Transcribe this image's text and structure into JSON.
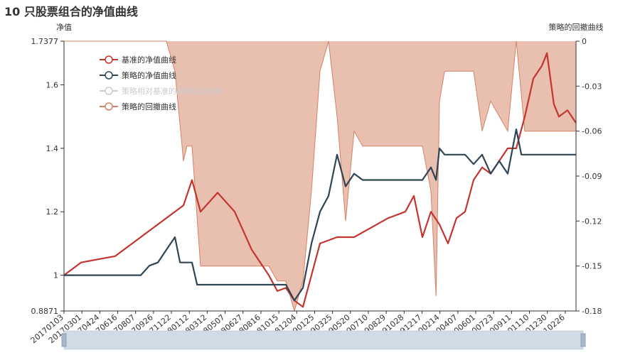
{
  "chart_data": {
    "type": "line",
    "title": "10 只股票组合的净值曲线",
    "y_left": {
      "label": "净值",
      "min": 0.8871,
      "max": 1.7377,
      "ticks": [
        "0.8871",
        "1",
        "1.2",
        "1.4",
        "1.6",
        "1.7377"
      ]
    },
    "y_right": {
      "label": "策略的回撤曲线",
      "min": -0.18,
      "max": 0,
      "ticks": [
        "-0.18",
        "-0.15",
        "-0.12",
        "-0.09",
        "-0.06",
        "-0.03",
        "0"
      ]
    },
    "x_labels": [
      "20170103",
      "20170301",
      "20170424",
      "20170616",
      "20170807",
      "20170926",
      "20171122",
      "20180112",
      "20180312",
      "20180507",
      "20180627",
      "20180816",
      "20181015",
      "20181204",
      "20190125",
      "20190325",
      "20190520",
      "20190710",
      "20190829",
      "20191028",
      "20191217",
      "20200214",
      "20200407",
      "20200601",
      "20200723",
      "20200911",
      "20201110",
      "20201230",
      "20210226"
    ],
    "legend": [
      "基准的净值曲线",
      "策略的净值曲线",
      "策略相对基准的超额收益曲线",
      "策略的回撤曲线"
    ],
    "legend_placement": "top-left",
    "colors": {
      "benchmark": "#c23531",
      "strategy": "#2f4554",
      "excess": "#cccccc",
      "drawdown_line": "#d48265",
      "drawdown_fill": "#e9bfb0"
    },
    "series": [
      {
        "name": "基准的净值曲线",
        "axis": "left",
        "points": [
          [
            0,
            1.0
          ],
          [
            1,
            1.04
          ],
          [
            2,
            1.05
          ],
          [
            3,
            1.06
          ],
          [
            4,
            1.1
          ],
          [
            5,
            1.14
          ],
          [
            6,
            1.18
          ],
          [
            7,
            1.22
          ],
          [
            7.5,
            1.3
          ],
          [
            8,
            1.2
          ],
          [
            9,
            1.26
          ],
          [
            10,
            1.2
          ],
          [
            11,
            1.08
          ],
          [
            12,
            1.0
          ],
          [
            12.5,
            0.95
          ],
          [
            13,
            0.96
          ],
          [
            13.5,
            0.92
          ],
          [
            14,
            0.9
          ],
          [
            14.5,
            1.0
          ],
          [
            15,
            1.1
          ],
          [
            16,
            1.12
          ],
          [
            17,
            1.12
          ],
          [
            18,
            1.15
          ],
          [
            19,
            1.18
          ],
          [
            20,
            1.2
          ],
          [
            20.5,
            1.25
          ],
          [
            21,
            1.12
          ],
          [
            21.5,
            1.2
          ],
          [
            22,
            1.16
          ],
          [
            22.5,
            1.1
          ],
          [
            23,
            1.18
          ],
          [
            23.5,
            1.2
          ],
          [
            24,
            1.3
          ],
          [
            24.5,
            1.34
          ],
          [
            25,
            1.32
          ],
          [
            25.5,
            1.36
          ],
          [
            26,
            1.4
          ],
          [
            26.5,
            1.4
          ],
          [
            27,
            1.5
          ],
          [
            27.5,
            1.62
          ],
          [
            28,
            1.66
          ],
          [
            28.3,
            1.7
          ],
          [
            28.7,
            1.54
          ],
          [
            29,
            1.5
          ],
          [
            29.5,
            1.52
          ],
          [
            30,
            1.48
          ]
        ]
      },
      {
        "name": "策略的净值曲线",
        "axis": "left",
        "points": [
          [
            0,
            1.0
          ],
          [
            4.5,
            1.0
          ],
          [
            5,
            1.03
          ],
          [
            5.5,
            1.04
          ],
          [
            6,
            1.08
          ],
          [
            6.5,
            1.12
          ],
          [
            6.8,
            1.04
          ],
          [
            7.5,
            1.04
          ],
          [
            7.8,
            0.97
          ],
          [
            13,
            0.97
          ],
          [
            13.5,
            0.92
          ],
          [
            14,
            0.96
          ],
          [
            14.5,
            1.1
          ],
          [
            15,
            1.2
          ],
          [
            15.5,
            1.25
          ],
          [
            16,
            1.38
          ],
          [
            16.5,
            1.28
          ],
          [
            17,
            1.32
          ],
          [
            17.5,
            1.3
          ],
          [
            21,
            1.3
          ],
          [
            21.5,
            1.34
          ],
          [
            21.8,
            1.3
          ],
          [
            22,
            1.4
          ],
          [
            22.3,
            1.38
          ],
          [
            23.5,
            1.38
          ],
          [
            24,
            1.35
          ],
          [
            24.5,
            1.38
          ],
          [
            25,
            1.32
          ],
          [
            25.5,
            1.36
          ],
          [
            26,
            1.32
          ],
          [
            26.5,
            1.46
          ],
          [
            26.8,
            1.38
          ],
          [
            30,
            1.38
          ]
        ]
      },
      {
        "name": "策略的回撤曲线",
        "axis": "right",
        "points": [
          [
            0,
            0.0
          ],
          [
            6,
            0.0
          ],
          [
            6.5,
            -0.02
          ],
          [
            7,
            -0.08
          ],
          [
            7.2,
            -0.07
          ],
          [
            7.5,
            -0.07
          ],
          [
            8,
            -0.15
          ],
          [
            11,
            -0.15
          ],
          [
            12,
            -0.15
          ],
          [
            12.5,
            -0.16
          ],
          [
            13,
            -0.16
          ],
          [
            13.5,
            -0.18
          ],
          [
            14,
            -0.16
          ],
          [
            14.5,
            -0.1
          ],
          [
            15,
            -0.02
          ],
          [
            15.5,
            0.0
          ],
          [
            16,
            -0.05
          ],
          [
            16.5,
            -0.12
          ],
          [
            17,
            -0.06
          ],
          [
            17.5,
            -0.07
          ],
          [
            21,
            -0.07
          ],
          [
            21.5,
            -0.1
          ],
          [
            21.8,
            -0.17
          ],
          [
            22,
            -0.04
          ],
          [
            22.3,
            -0.02
          ],
          [
            24,
            -0.02
          ],
          [
            24.5,
            -0.06
          ],
          [
            25,
            -0.04
          ],
          [
            25.5,
            -0.05
          ],
          [
            26,
            -0.06
          ],
          [
            26.5,
            0.0
          ],
          [
            27,
            -0.06
          ],
          [
            30,
            -0.06
          ]
        ]
      }
    ]
  }
}
